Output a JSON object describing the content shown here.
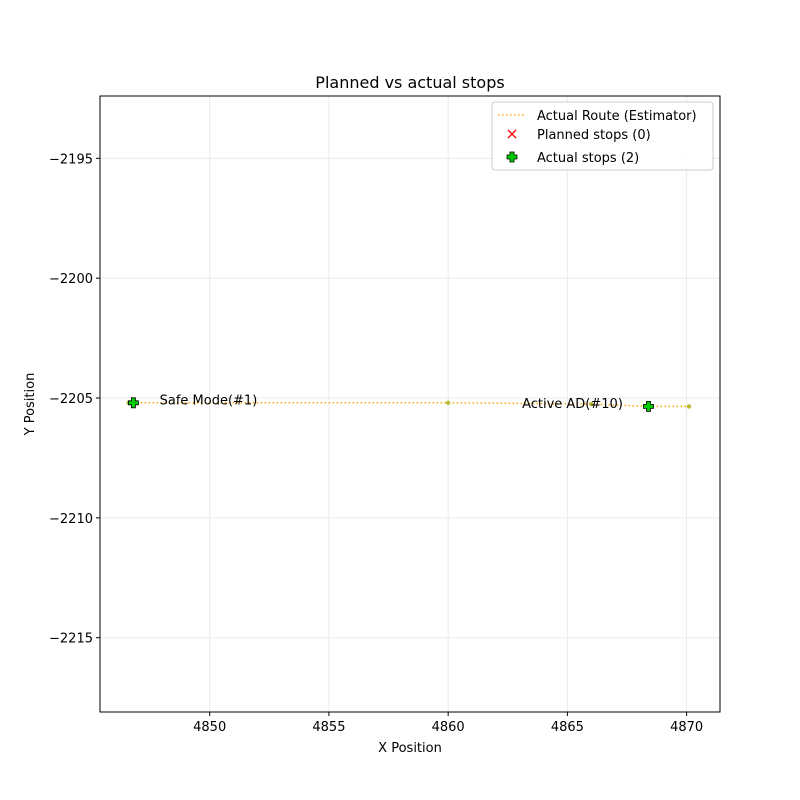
{
  "chart_data": {
    "type": "scatter",
    "title": "Planned vs actual stops",
    "xlabel": "X Position",
    "ylabel": "Y Position",
    "xlim": [
      4845.4,
      4871.4
    ],
    "ylim": [
      -2218.1,
      -2192.4
    ],
    "x_ticks": [
      4850,
      4855,
      4860,
      4865,
      4870
    ],
    "y_ticks": [
      -2195,
      -2200,
      -2205,
      -2210,
      -2215
    ],
    "x_tick_labels": [
      "4850",
      "4855",
      "4860",
      "4865",
      "4870"
    ],
    "y_tick_labels": [
      "−2195",
      "−2200",
      "−2205",
      "−2210",
      "−2215"
    ],
    "grid": true,
    "legend_position": "top-right",
    "series": [
      {
        "name": "Actual Route (Estimator)",
        "kind": "line",
        "style": "dotted",
        "color": "#ffa500",
        "x": [
          4846.6,
          4860.0,
          4866.0,
          4868.4,
          4870.1
        ],
        "y": [
          -2205.2,
          -2205.2,
          -2205.25,
          -2205.35,
          -2205.35
        ]
      },
      {
        "name": "Planned stops (0)",
        "kind": "scatter",
        "marker": "x",
        "color": "#ff0000",
        "x": [],
        "y": []
      },
      {
        "name": "Actual stops (2)",
        "kind": "scatter",
        "marker": "plus",
        "color": "#00cc00",
        "x": [
          4846.8,
          4868.4
        ],
        "y": [
          -2205.2,
          -2205.35
        ]
      }
    ],
    "annotations": [
      {
        "text": "Safe Mode(#1)",
        "x": 4847.9,
        "y": -2205.1
      },
      {
        "text": "Active AD(#10)",
        "x": 4863.1,
        "y": -2205.25
      }
    ]
  }
}
